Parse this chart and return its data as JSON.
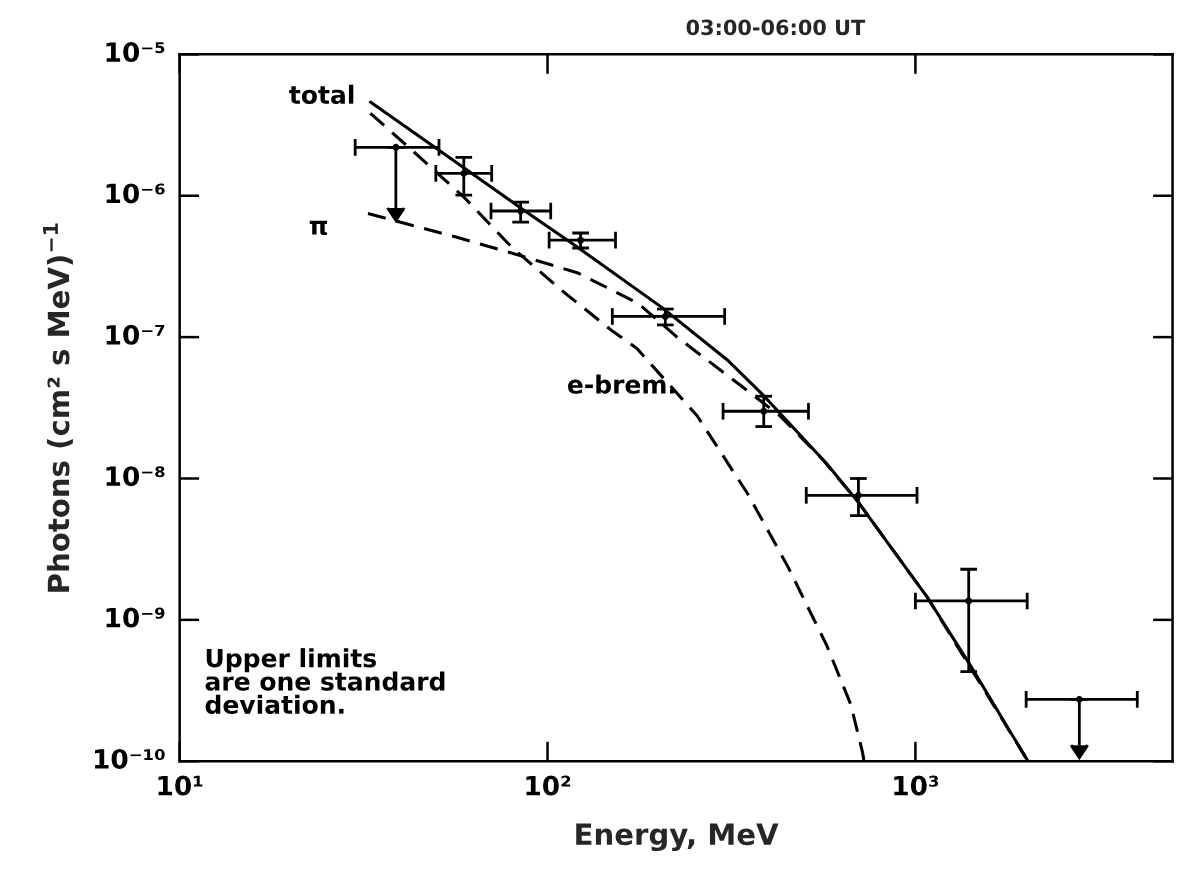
{
  "chart_data": {
    "type": "line",
    "title": "03:00-06:00 UT",
    "xlabel": "Energy, MeV",
    "ylabel": "Photons (cm² s MeV)$^{−1}$",
    "log": "xy",
    "xlim": [
      10,
      5000
    ],
    "ylim": [
      1e-10,
      1e-05
    ],
    "xticks": [
      {
        "value": 10,
        "label": "10¹"
      },
      {
        "value": 100,
        "label": "10²"
      },
      {
        "value": 1000,
        "label": "10³"
      }
    ],
    "yticks": [
      {
        "value": 1e-10,
        "label": "10⁻¹⁰"
      },
      {
        "value": 1e-09,
        "label": "10⁻⁹"
      },
      {
        "value": 1e-08,
        "label": "10⁻⁸"
      },
      {
        "value": 1e-07,
        "label": "10⁻⁷"
      },
      {
        "value": 1e-06,
        "label": "10⁻⁶"
      },
      {
        "value": 1e-05,
        "label": "10⁻⁵"
      }
    ],
    "grid": false,
    "legend": false,
    "series": [
      {
        "color": "#000000",
        "line_style": "solid",
        "x": [
          33,
          50.7,
          84.5,
          121,
          204,
          310,
          387,
          574,
          701,
          871,
          1078,
          1401,
          2023
        ],
        "values": [
          4.6e-06,
          2.1e-06,
          8.2e-07,
          4.3e-07,
          1.63e-07,
          6.8e-08,
          3.85e-08,
          1.27e-08,
          6.75e-09,
          3.09e-09,
          1.44e-09,
          4.9e-10,
          1e-10
        ]
      },
      {
        "color": "#000000",
        "line_style": "dashed",
        "x": [
          32.5,
          56.4,
          79.8,
          121,
          176,
          225,
          333,
          428,
          560,
          701,
          1078,
          2023
        ],
        "values": [
          7.5e-07,
          5.1e-07,
          3.94e-07,
          2.84e-07,
          1.74e-07,
          1e-07,
          4.6e-08,
          2.78e-08,
          1.36e-08,
          6.75e-09,
          1.44e-09,
          1e-10
        ]
      },
      {
        "color": "#000000",
        "line_style": "dashed",
        "x": [
          33,
          42.8,
          59.2,
          79.8,
          109,
          149,
          175,
          255,
          351,
          450,
          574,
          667,
          718,
          725
        ],
        "values": [
          3.83e-06,
          2.1e-06,
          9.8e-07,
          4.34e-07,
          2.15e-07,
          1.12e-07,
          8.3e-08,
          2.78e-08,
          7.7e-09,
          2.38e-09,
          6.6e-10,
          2.53e-10,
          1.16e-10,
          1e-10
        ]
      },
      {
        "type": "scatter",
        "color": "#000000",
        "marker": "circle",
        "x": [
          59.2,
          84.5,
          123,
          209,
          387,
          700,
          1396
        ],
        "values": [
          1.44e-06,
          7.8e-07,
          4.85e-07,
          1.4e-07,
          2.99e-08,
          7.6e-09,
          1.36e-09
        ],
        "errors": [
          [
            1.01e-06,
            1.87e-06
          ],
          [
            6.5e-07,
            9e-07
          ],
          [
            4.27e-07,
            5.45e-07
          ],
          [
            1.22e-07,
            1.58e-07
          ],
          [
            2.33e-08,
            3.82e-08
          ],
          [
            5.47e-09,
            1e-08
          ],
          [
            4.3e-10,
            2.28e-09
          ]
        ],
        "xerrors": [
          [
            49.7,
            70.5
          ],
          [
            70.2,
            102
          ],
          [
            101,
            153
          ],
          [
            150,
            303
          ],
          [
            300,
            512
          ],
          [
            505,
            1010
          ],
          [
            1000,
            2013
          ]
        ]
      },
      {
        "type": "scatter",
        "color": "#000000",
        "marker": "circle",
        "x": [
          38.7,
          2790
        ],
        "values": [
          2.2e-06,
          2.74e-10
        ],
        "errors": [
          [
            8.2e-07,
            2.2e-06
          ],
          [
            1.3e-10,
            2.74e-10
          ]
        ],
        "xerrors": [
          [
            30,
            50.7
          ],
          [
            2000,
            4010
          ]
        ]
      }
    ],
    "annotations": [
      "total",
      "π",
      "e-brem.",
      "Upper limits\nare one standard\ndeviation."
    ]
  }
}
